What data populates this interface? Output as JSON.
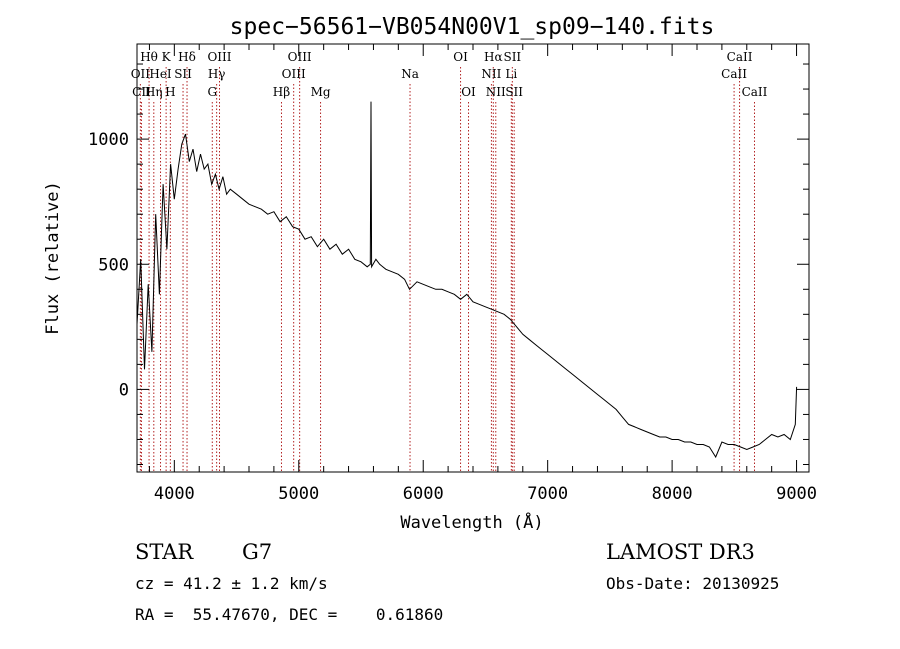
{
  "chart_data": {
    "type": "line",
    "title": "spec−56561−VB054N00V1_sp09−140.fits",
    "xlabel": "Wavelength (Å)",
    "ylabel": "Flux (relative)",
    "xlim": [
      3700,
      9100
    ],
    "ylim": [
      -330,
      1380
    ],
    "xticks": [
      4000,
      5000,
      6000,
      7000,
      8000,
      9000
    ],
    "yticks": [
      0,
      500,
      1000
    ],
    "xtick_labels": [
      "4000",
      "5000",
      "6000",
      "7000",
      "8000",
      "9000"
    ],
    "ytick_labels": [
      "0",
      "500",
      "1000"
    ],
    "series": [
      {
        "name": "flux",
        "x": [
          3700,
          3730,
          3760,
          3790,
          3820,
          3850,
          3880,
          3910,
          3940,
          3970,
          4000,
          4030,
          4060,
          4090,
          4120,
          4150,
          4180,
          4210,
          4240,
          4270,
          4300,
          4330,
          4360,
          4390,
          4420,
          4450,
          4500,
          4550,
          4600,
          4650,
          4700,
          4750,
          4800,
          4850,
          4900,
          4950,
          5000,
          5050,
          5100,
          5150,
          5200,
          5250,
          5300,
          5350,
          5400,
          5450,
          5500,
          5550,
          5575,
          5580,
          5585,
          5620,
          5650,
          5700,
          5750,
          5800,
          5850,
          5890,
          5950,
          6000,
          6050,
          6100,
          6150,
          6200,
          6250,
          6300,
          6350,
          6400,
          6450,
          6500,
          6550,
          6600,
          6650,
          6700,
          6750,
          6800,
          6850,
          6900,
          6950,
          7000,
          7050,
          7100,
          7150,
          7200,
          7250,
          7300,
          7350,
          7400,
          7450,
          7500,
          7550,
          7600,
          7650,
          7700,
          7750,
          7800,
          7850,
          7900,
          7950,
          8000,
          8050,
          8100,
          8150,
          8200,
          8250,
          8300,
          8350,
          8400,
          8450,
          8500,
          8550,
          8600,
          8650,
          8700,
          8750,
          8800,
          8850,
          8900,
          8950,
          8990,
          9000
        ],
        "values": [
          260,
          520,
          80,
          420,
          150,
          700,
          380,
          820,
          560,
          900,
          760,
          880,
          980,
          1020,
          910,
          960,
          870,
          940,
          880,
          900,
          820,
          860,
          800,
          850,
          780,
          800,
          780,
          760,
          740,
          730,
          720,
          700,
          710,
          670,
          690,
          650,
          640,
          600,
          610,
          570,
          600,
          560,
          580,
          540,
          560,
          520,
          510,
          490,
          500,
          1150,
          490,
          520,
          500,
          480,
          470,
          460,
          440,
          400,
          430,
          420,
          410,
          400,
          400,
          390,
          380,
          360,
          380,
          350,
          340,
          330,
          320,
          310,
          300,
          280,
          250,
          220,
          200,
          180,
          160,
          140,
          120,
          100,
          80,
          60,
          40,
          20,
          0,
          -20,
          -40,
          -60,
          -80,
          -110,
          -140,
          -150,
          -160,
          -170,
          -180,
          -190,
          -190,
          -200,
          -200,
          -210,
          -210,
          -220,
          -220,
          -230,
          -270,
          -210,
          -220,
          -220,
          -230,
          -240,
          -230,
          -220,
          -200,
          -180,
          -190,
          -180,
          -200,
          -140,
          10
        ]
      }
    ],
    "line_labels": [
      {
        "text": "Hθ",
        "x": 3797,
        "row": 1
      },
      {
        "text": "OII",
        "x": 3727,
        "row": 2
      },
      {
        "text": "CII",
        "x": 3736,
        "row": 3
      },
      {
        "text": "Hη",
        "x": 3835,
        "row": 3
      },
      {
        "text": "HeI",
        "x": 3889,
        "row": 2
      },
      {
        "text": "K",
        "x": 3934,
        "row": 1
      },
      {
        "text": "H",
        "x": 3968,
        "row": 3
      },
      {
        "text": "SII",
        "x": 4070,
        "row": 2
      },
      {
        "text": "Hδ",
        "x": 4102,
        "row": 1
      },
      {
        "text": "OIII",
        "x": 4363,
        "row": 1
      },
      {
        "text": "Hγ",
        "x": 4340,
        "row": 2
      },
      {
        "text": "G",
        "x": 4305,
        "row": 3
      },
      {
        "text": "Hβ",
        "x": 4861,
        "row": 3
      },
      {
        "text": "OIII",
        "x": 4959,
        "row": 2
      },
      {
        "text": "OIII",
        "x": 5007,
        "row": 1
      },
      {
        "text": "Mg",
        "x": 5175,
        "row": 3
      },
      {
        "text": "Na",
        "x": 5894,
        "row": 2
      },
      {
        "text": "OI",
        "x": 6300,
        "row": 1
      },
      {
        "text": "OI",
        "x": 6364,
        "row": 3
      },
      {
        "text": "Hα",
        "x": 6563,
        "row": 1
      },
      {
        "text": "NII",
        "x": 6548,
        "row": 2
      },
      {
        "text": "NII",
        "x": 6583,
        "row": 3
      },
      {
        "text": "SII",
        "x": 6716,
        "row": 1
      },
      {
        "text": "Li",
        "x": 6708,
        "row": 2
      },
      {
        "text": "SII",
        "x": 6731,
        "row": 3
      },
      {
        "text": "CaII",
        "x": 8542,
        "row": 1
      },
      {
        "text": "CaII",
        "x": 8498,
        "row": 2
      },
      {
        "text": "CaII",
        "x": 8662,
        "row": 3
      }
    ],
    "line_color": "#000000",
    "marker_color": "#b22222"
  },
  "info": {
    "object_class": "STAR",
    "subclass": "G7",
    "survey": "LAMOST DR3",
    "cz": "cz = 41.2 ± 1.2 km/s",
    "obs_date": "Obs-Date: 20130925",
    "coords": "RA =  55.47670, DEC =    0.61860"
  }
}
